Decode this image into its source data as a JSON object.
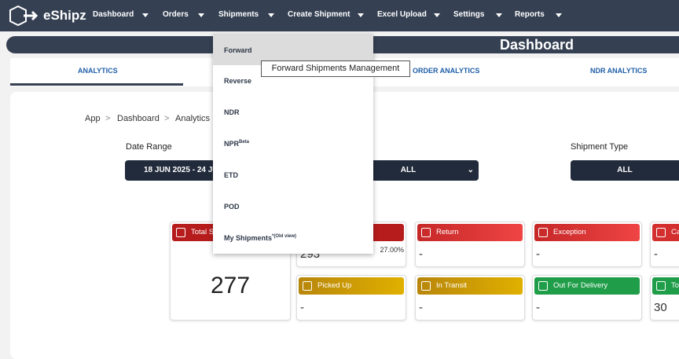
{
  "nav": {
    "brand": "eShipz",
    "items": [
      "Dashboard",
      "Orders",
      "Shipments",
      "Create Shipment",
      "Excel Upload",
      "Settings",
      "Reports"
    ]
  },
  "page_title": "Dashboard",
  "tabs": [
    "ANALYTICS",
    "ORDER ANALYTICS",
    "NDR ANALYTICS"
  ],
  "breadcrumb": [
    "App",
    "Dashboard",
    "Analytics"
  ],
  "filters": [
    {
      "label": "Date Range",
      "value": "18 JUN 2025 - 24 JU"
    },
    {
      "value": "ALL"
    },
    {
      "label": "Shipment Type",
      "value": "ALL"
    }
  ],
  "cards": [
    {
      "title": "Total S",
      "value": "277"
    },
    {
      "value": "293",
      "change": "27.00%"
    },
    {
      "title": "Return",
      "value": "-"
    },
    {
      "title": "Exception",
      "value": "-"
    },
    {
      "title": "Ca",
      "value": "-"
    },
    {
      "title": "Picked Up",
      "value": "-"
    },
    {
      "title": "In Transit",
      "value": "-"
    },
    {
      "title": "Out For Delivery",
      "value": "-"
    },
    {
      "title": "To",
      "value": "30"
    }
  ],
  "menu": {
    "items": [
      {
        "label": "Forward"
      },
      {
        "label": "Reverse"
      },
      {
        "label": "NDR"
      },
      {
        "label": "NPR",
        "sup": "Beta"
      },
      {
        "label": "ETD"
      },
      {
        "label": "POD"
      },
      {
        "label": "My Shipments",
        "sup": "*(Old view)"
      }
    ],
    "tooltip": "Forward Shipments Management"
  }
}
